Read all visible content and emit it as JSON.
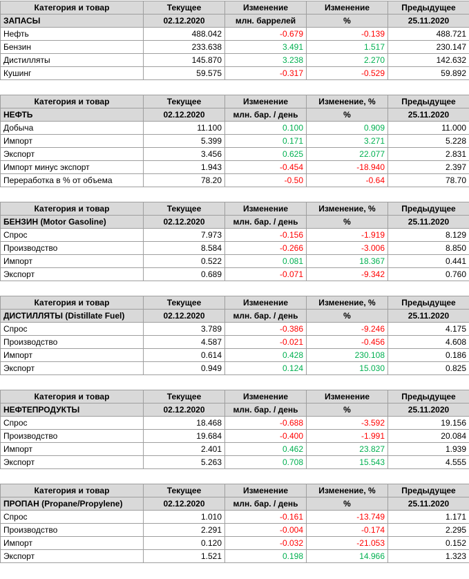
{
  "colors": {
    "header_bg": "#d9d9d9",
    "positive": "#00b050",
    "negative": "#ff0000",
    "border": "#9e9e9e",
    "text": "#000000"
  },
  "tables": [
    {
      "columns": [
        "Категория и товар",
        "Текущее",
        "Изменение",
        "Изменение",
        "Предыдущее"
      ],
      "units_row": [
        "ЗАПАСЫ",
        "02.12.2020",
        "млн. баррелей",
        "%",
        "25.11.2020"
      ],
      "rows": [
        [
          "Нефть",
          "488.042",
          "-0.679",
          "-0.139",
          "488.721"
        ],
        [
          "Бензин",
          "233.638",
          "3.491",
          "1.517",
          "230.147"
        ],
        [
          "Дистилляты",
          "145.870",
          "3.238",
          "2.270",
          "142.632"
        ],
        [
          "Кушинг",
          "59.575",
          "-0.317",
          "-0.529",
          "59.892"
        ]
      ]
    },
    {
      "columns": [
        "Категория и товар",
        "Текущее",
        "Изменение",
        "Изменение, %",
        "Предыдущее"
      ],
      "units_row": [
        "НЕФТЬ",
        "02.12.2020",
        "млн. бар. / день",
        "%",
        "25.11.2020"
      ],
      "rows": [
        [
          "Добыча",
          "11.100",
          "0.100",
          "0.909",
          "11.000"
        ],
        [
          "Импорт",
          "5.399",
          "0.171",
          "3.271",
          "5.228"
        ],
        [
          "Экспорт",
          "3.456",
          "0.625",
          "22.077",
          "2.831"
        ],
        [
          "Импорт минус экспорт",
          "1.943",
          "-0.454",
          "-18.940",
          "2.397"
        ],
        [
          "Переработка в % от объема",
          "78.20",
          "-0.50",
          "-0.64",
          "78.70"
        ]
      ]
    },
    {
      "columns": [
        "Категория и товар",
        "Текущее",
        "Изменение",
        "Изменение, %",
        "Предыдущее"
      ],
      "units_row": [
        "БЕНЗИН (Motor Gasoline)",
        "02.12.2020",
        "млн. бар. / день",
        "%",
        "25.11.2020"
      ],
      "rows": [
        [
          "Спрос",
          "7.973",
          "-0.156",
          "-1.919",
          "8.129"
        ],
        [
          "Производство",
          "8.584",
          "-0.266",
          "-3.006",
          "8.850"
        ],
        [
          "Импорт",
          "0.522",
          "0.081",
          "18.367",
          "0.441"
        ],
        [
          "Экспорт",
          "0.689",
          "-0.071",
          "-9.342",
          "0.760"
        ]
      ]
    },
    {
      "columns": [
        "Категория и товар",
        "Текущее",
        "Изменение",
        "Изменение, %",
        "Предыдущее"
      ],
      "units_row": [
        "ДИСТИЛЛЯТЫ (Distillate Fuel)",
        "02.12.2020",
        "млн. бар. / день",
        "%",
        "25.11.2020"
      ],
      "rows": [
        [
          "Спрос",
          "3.789",
          "-0.386",
          "-9.246",
          "4.175"
        ],
        [
          "Производство",
          "4.587",
          "-0.021",
          "-0.456",
          "4.608"
        ],
        [
          "Импорт",
          "0.614",
          "0.428",
          "230.108",
          "0.186"
        ],
        [
          "Экспорт",
          "0.949",
          "0.124",
          "15.030",
          "0.825"
        ]
      ]
    },
    {
      "columns": [
        "Категория и товар",
        "Текущее",
        "Изменение",
        "Изменение",
        "Предыдущее"
      ],
      "units_row": [
        "НЕФТЕПРОДУКТЫ",
        "02.12.2020",
        "млн. бар. / день",
        "%",
        "25.11.2020"
      ],
      "rows": [
        [
          "Спрос",
          "18.468",
          "-0.688",
          "-3.592",
          "19.156"
        ],
        [
          "Производство",
          "19.684",
          "-0.400",
          "-1.991",
          "20.084"
        ],
        [
          "Импорт",
          "2.401",
          "0.462",
          "23.827",
          "1.939"
        ],
        [
          "Экспорт",
          "5.263",
          "0.708",
          "15.543",
          "4.555"
        ]
      ]
    },
    {
      "columns": [
        "Категория и товар",
        "Текущее",
        "Изменение",
        "Изменение, %",
        "Предыдущее"
      ],
      "units_row": [
        "ПРОПАН (Propane/Propylene)",
        "02.12.2020",
        "млн. бар. / день",
        "%",
        "25.11.2020"
      ],
      "rows": [
        [
          "Спрос",
          "1.010",
          "-0.161",
          "-13.749",
          "1.171"
        ],
        [
          "Производство",
          "2.291",
          "-0.004",
          "-0.174",
          "2.295"
        ],
        [
          "Импорт",
          "0.120",
          "-0.032",
          "-21.053",
          "0.152"
        ],
        [
          "Экспорт",
          "1.521",
          "0.198",
          "14.966",
          "1.323"
        ]
      ]
    }
  ]
}
